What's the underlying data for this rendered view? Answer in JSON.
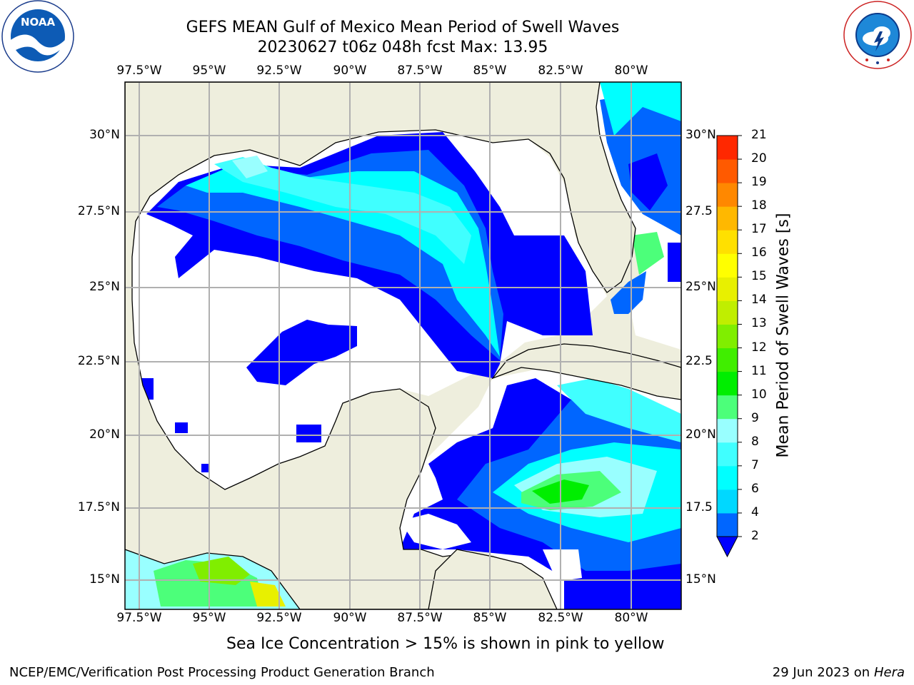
{
  "title": {
    "line1": "GEFS MEAN Gulf of Mexico Mean Period of Swell Waves",
    "line2": "20230627 t06z 048h fcst   Max: 13.95"
  },
  "axes": {
    "lon_labels": [
      "97.5°W",
      "95°W",
      "92.5°W",
      "90°W",
      "87.5°W",
      "85°W",
      "82.5°W",
      "80°W"
    ],
    "lat_labels_left": [
      "30°N",
      "27.5°N",
      "25°N",
      "22.5°N",
      "20°N",
      "17.5°N",
      "15°N"
    ],
    "lat_labels_right": [
      "30°N",
      "27.5",
      "25°N",
      "22.5",
      "20°N",
      "17.5",
      "15°N"
    ]
  },
  "colorbar": {
    "title": "Mean Period of Swell Waves [s]",
    "ticks": [
      "2",
      "4",
      "6",
      "7",
      "8",
      "9",
      "10",
      "11",
      "12",
      "13",
      "14",
      "15",
      "16",
      "17",
      "18",
      "19",
      "20",
      "21"
    ],
    "colors": [
      "#0066ff",
      "#00d8ff",
      "#00ffff",
      "#40ffff",
      "#99ffff",
      "#4cff7a",
      "#00ee00",
      "#40ee00",
      "#80ee00",
      "#c0ee00",
      "#e8f000",
      "#ffff00",
      "#ffe000",
      "#ffb800",
      "#ff8800",
      "#ff5a00",
      "#ff2800",
      "#ff0000"
    ],
    "under_color": "#0000ff"
  },
  "caption": "Sea Ice Concentration > 15% is shown in pink to yellow",
  "footer": {
    "left": "NCEP/EMC/Verification Post Processing Product Generation Branch",
    "right_date": "29 Jun 2023 on",
    "right_host": "Hera"
  },
  "logos": {
    "noaa": "NOAA",
    "nws_ring": "NATIONAL WEATHER SERVICE"
  },
  "colors": {
    "land": "#eeeedd",
    "ocean_blank": "#ffffff",
    "grid": "#b0b0b0"
  }
}
